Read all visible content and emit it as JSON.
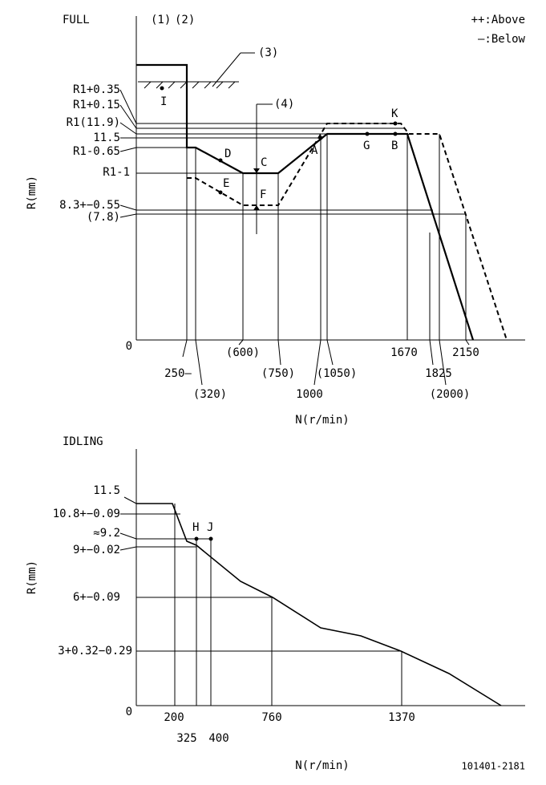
{
  "full": {
    "title": "FULL",
    "ref1": "(1)",
    "ref2": "(2)",
    "legend_above": "++:Above",
    "legend_below": "—:Below",
    "ref3": "(3)",
    "ref4": "(4)",
    "points": {
      "I": "I",
      "K": "K",
      "A": "A",
      "G": "G",
      "B": "B",
      "C": "C",
      "D": "D",
      "E": "E",
      "F": "F"
    },
    "y_labels": [
      "R1+0.35",
      "R1+0.15",
      "R1(11.9)",
      "11.5",
      "R1-0.65",
      "R1-1",
      "8.3+−0.55",
      "(7.8)",
      "0"
    ],
    "y_axis": "R(mm)",
    "x_labels": [
      "250—",
      "(320)",
      "(600)",
      "(750)",
      "1000",
      "(1050)",
      "1670",
      "1825",
      "(2000)",
      "2150"
    ],
    "x_axis": "N(r/min)"
  },
  "idling": {
    "title": "IDLING",
    "points": {
      "H": "H",
      "J": "J"
    },
    "y_labels": [
      "11.5",
      "10.8+−0.09",
      "≈9.2",
      "9+−0.02",
      "6+−0.09",
      "3+0.32−0.29",
      "0"
    ],
    "y_axis": "R(mm)",
    "x_labels": [
      "200",
      "325",
      "400",
      "760",
      "1370"
    ],
    "x_axis": "N(r/min)"
  },
  "code": "101401-2181"
}
